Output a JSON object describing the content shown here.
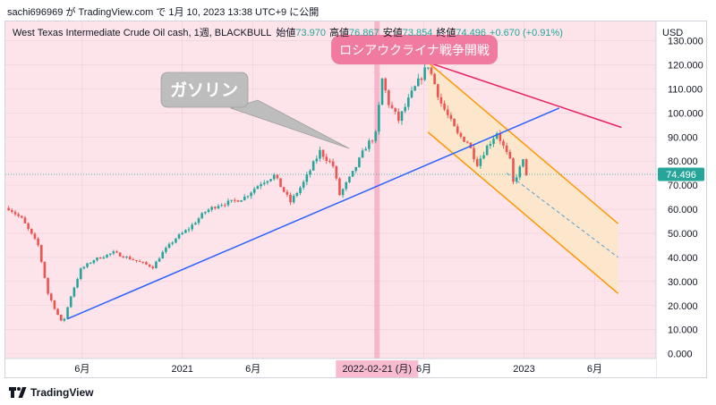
{
  "caption": "sachi696969 が TradingView.com で 1月 10, 2023 13:38 UTC+9 に公開",
  "footer": {
    "brand": "TradingView"
  },
  "header": {
    "symbol": "West Texas Intermediate Crude Oil cash, 1週, BLACKBULL",
    "open_label": "始値",
    "open": "73.970",
    "high_label": "高値",
    "high": "76.867",
    "low_label": "安値",
    "low": "73.854",
    "close_label": "終値",
    "close": "74.496",
    "change": "+0.670 (+0.91%)"
  },
  "annotations": {
    "gasoline": "ガソリン",
    "war": "ロシアウクライナ戦争開戦",
    "date_marker": "2022-02-21 (月)"
  },
  "colors": {
    "up": "#26a69a",
    "down": "#ef5350",
    "background": "#fce4ea",
    "blue_trendline": "#2962ff",
    "red_trendline": "#e91e63",
    "channel": "#ff9800",
    "channel_fill": "#fce8c8",
    "marker_line": "#f48fb1",
    "callout_grey": "#bdbdbd",
    "war_badge": "#f07aa0"
  },
  "chart_data": {
    "type": "candlestick",
    "interval": "1週",
    "currency": "USD",
    "price_axis": {
      "unit": "USD",
      "ticks": [
        "130.000",
        "120.000",
        "110.000",
        "100.000",
        "90.000",
        "80.000",
        "70.000",
        "60.000",
        "50.000",
        "40.000",
        "30.000",
        "20.000",
        "10.000",
        "0.000"
      ],
      "ylim": [
        -2,
        138
      ]
    },
    "time_axis": {
      "ticks": [
        "6月",
        "2021",
        "6月",
        "2022-02-21 (月)",
        "6月",
        "2023",
        "6月"
      ],
      "tick_dates": [
        "2020-06-01",
        "2021-01-01",
        "2021-06-01",
        "2022-02-21",
        "2022-06-01",
        "2023-01-01",
        "2023-06-01"
      ],
      "range": [
        "2019-12-20",
        "2023-10-10"
      ]
    },
    "last_price": "74.496",
    "anchors": [
      [
        "2019-12-27",
        60.5
      ],
      [
        "2020-01-24",
        56
      ],
      [
        "2020-02-28",
        45
      ],
      [
        "2020-03-20",
        25
      ],
      [
        "2020-04-20",
        12
      ],
      [
        "2020-05-08",
        24
      ],
      [
        "2020-05-29",
        35
      ],
      [
        "2020-06-26",
        39
      ],
      [
        "2020-08-07",
        42
      ],
      [
        "2020-09-04",
        40
      ],
      [
        "2020-10-02",
        38
      ],
      [
        "2020-10-30",
        36
      ],
      [
        "2020-11-20",
        42
      ],
      [
        "2020-12-18",
        48
      ],
      [
        "2021-01-15",
        52
      ],
      [
        "2021-02-19",
        59
      ],
      [
        "2021-03-19",
        62
      ],
      [
        "2021-04-16",
        63
      ],
      [
        "2021-05-14",
        65
      ],
      [
        "2021-06-18",
        71
      ],
      [
        "2021-07-16",
        74
      ],
      [
        "2021-08-20",
        63
      ],
      [
        "2021-09-17",
        71
      ],
      [
        "2021-10-22",
        84
      ],
      [
        "2021-11-19",
        78
      ],
      [
        "2021-12-03",
        66
      ],
      [
        "2021-12-31",
        75
      ],
      [
        "2022-01-28",
        86
      ],
      [
        "2022-02-18",
        91
      ],
      [
        "2022-03-04",
        114
      ],
      [
        "2022-03-18",
        104
      ],
      [
        "2022-04-08",
        97
      ],
      [
        "2022-05-06",
        108
      ],
      [
        "2022-06-10",
        120
      ],
      [
        "2022-07-08",
        104
      ],
      [
        "2022-08-12",
        91
      ],
      [
        "2022-09-02",
        88
      ],
      [
        "2022-09-23",
        79
      ],
      [
        "2022-10-14",
        86
      ],
      [
        "2022-11-04",
        92
      ],
      [
        "2022-12-02",
        80
      ],
      [
        "2022-12-09",
        71
      ],
      [
        "2022-12-30",
        80
      ],
      [
        "2023-01-06",
        74
      ]
    ],
    "trendlines": [
      {
        "name": "blue",
        "points": [
          [
            "2020-05-01",
            14.5
          ],
          [
            "2023-03-17",
            102
          ]
        ]
      },
      {
        "name": "red",
        "points": [
          [
            "2022-06-10",
            121
          ],
          [
            "2023-07-28",
            94
          ]
        ]
      }
    ],
    "channel": {
      "upper": [
        [
          "2022-06-10",
          121
        ],
        [
          "2023-07-21",
          54
        ]
      ],
      "lower": [
        [
          "2022-06-10",
          92
        ],
        [
          "2023-07-21",
          25
        ]
      ],
      "midline": [
        [
          "2022-11-25",
          75
        ],
        [
          "2023-07-21",
          40
        ]
      ]
    }
  }
}
